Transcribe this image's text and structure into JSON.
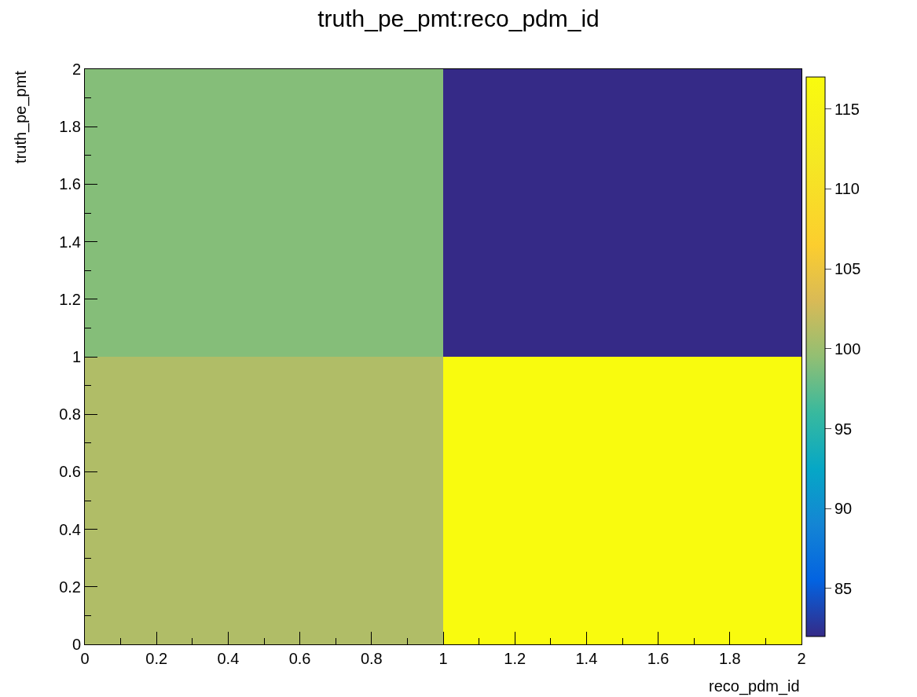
{
  "chart_data": {
    "type": "heatmap",
    "title": "truth_pe_pmt:reco_pdm_id",
    "xlabel": "reco_pdm_id",
    "ylabel": "truth_pe_pmt",
    "cells": [
      [
        99,
        82
      ],
      [
        101,
        117
      ]
    ],
    "xlim": [
      0,
      2
    ],
    "xticks": [
      0,
      0.2,
      0.4,
      0.6,
      0.8,
      1,
      1.2,
      1.4,
      1.6,
      1.8,
      2
    ],
    "ylim": [
      0,
      2
    ],
    "yticks": [
      0,
      0.2,
      0.4,
      0.6,
      0.8,
      1,
      1.2,
      1.4,
      1.6,
      1.8,
      2
    ],
    "clim": [
      82,
      117
    ],
    "cticks": [
      85,
      90,
      95,
      100,
      105,
      110,
      115
    ]
  }
}
